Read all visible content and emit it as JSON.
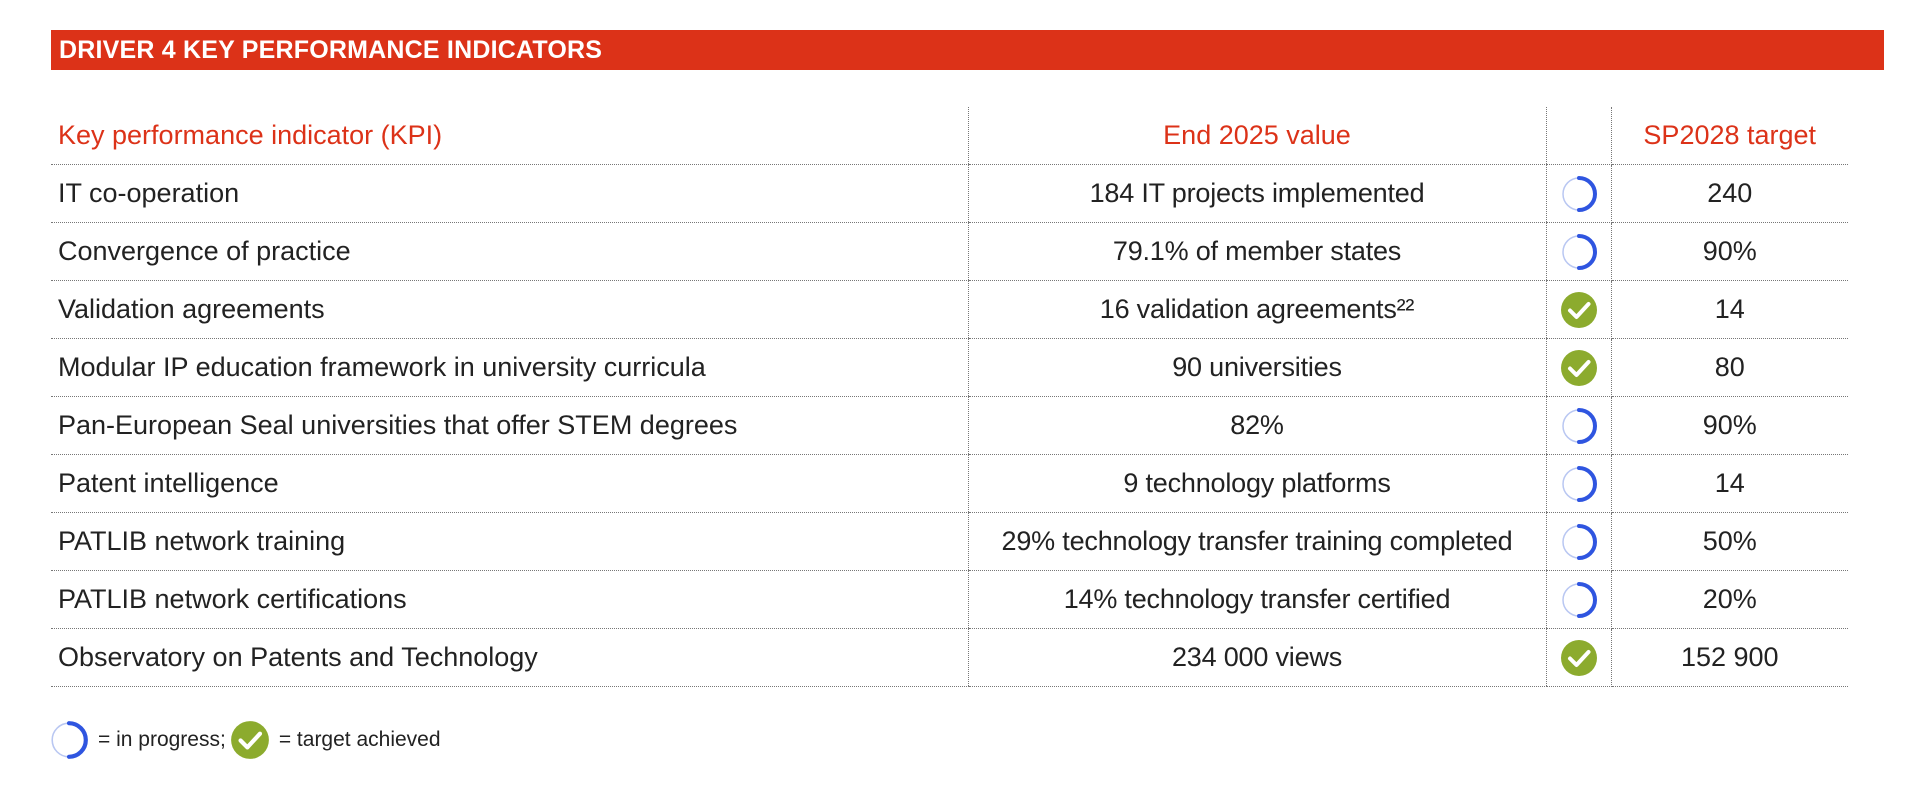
{
  "title": "DRIVER 4 KEY PERFORMANCE INDICATORS",
  "headers": {
    "kpi": "Key performance indicator (KPI)",
    "value": "End 2025 value",
    "target": "SP2028 target"
  },
  "rows": [
    {
      "kpi": "IT co-operation",
      "value": "184 IT projects implemented",
      "status": "in-progress",
      "target": "240"
    },
    {
      "kpi": "Convergence of practice",
      "value": "79.1% of member states",
      "status": "in-progress",
      "target": "90%"
    },
    {
      "kpi": "Validation agreements",
      "value": "16 validation agreements²²",
      "status": "achieved",
      "target": "14"
    },
    {
      "kpi": "Modular IP education framework in university curricula",
      "value": "90 universities",
      "status": "achieved",
      "target": "80"
    },
    {
      "kpi": "Pan-European Seal universities that offer STEM degrees",
      "value": "82%",
      "status": "in-progress",
      "target": "90%"
    },
    {
      "kpi": "Patent intelligence",
      "value": "9 technology platforms",
      "status": "in-progress",
      "target": "14"
    },
    {
      "kpi": "PATLIB network training",
      "value": "29% technology transfer training completed",
      "status": "in-progress",
      "target": "50%"
    },
    {
      "kpi": "PATLIB network certifications",
      "value": "14% technology transfer certified",
      "status": "in-progress",
      "target": "20%"
    },
    {
      "kpi": "Observatory on Patents and Technology",
      "value": "234 000 views",
      "status": "achieved",
      "target": "152 900"
    }
  ],
  "legend": {
    "in_progress": "= in progress;",
    "achieved": "= target achieved"
  },
  "icons": {
    "in-progress": "progress-ring-icon",
    "achieved": "check-circle-icon"
  },
  "colors": {
    "banner": "#dc3218",
    "header_text": "#dc3218",
    "progress_ring": "#2f55e0",
    "achieved": "#8cab2e"
  }
}
